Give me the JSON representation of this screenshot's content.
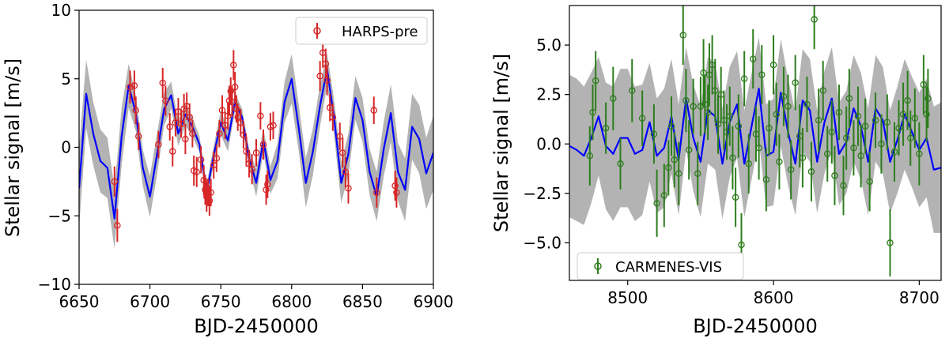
{
  "chart_data": [
    {
      "type": "scatter",
      "id": "left",
      "xlabel": "BJD-2450000",
      "ylabel": "Stellar signal [m/s]",
      "xlim": [
        6650,
        6900
      ],
      "ylim": [
        -10,
        10
      ],
      "xticks": [
        6650,
        6700,
        6750,
        6800,
        6850,
        6900
      ],
      "yticks": [
        -10,
        -5,
        0,
        5,
        10
      ],
      "legend": {
        "label": "HARPS-pre",
        "placement": "top-right"
      },
      "colors": {
        "data": "#d62728",
        "model": "#0000ff",
        "band": "#b3b3b3"
      },
      "model": {
        "x": [
          6650,
          6655,
          6660,
          6665,
          6670,
          6675,
          6680,
          6685,
          6690,
          6695,
          6700,
          6705,
          6710,
          6715,
          6720,
          6725,
          6730,
          6735,
          6740,
          6745,
          6750,
          6755,
          6760,
          6765,
          6770,
          6775,
          6780,
          6785,
          6790,
          6795,
          6800,
          6805,
          6810,
          6815,
          6820,
          6825,
          6830,
          6835,
          6840,
          6845,
          6850,
          6855,
          6860,
          6865,
          6870,
          6875,
          6880,
          6885,
          6890,
          6895,
          6900
        ],
        "y": [
          -3.0,
          3.9,
          1.0,
          -1.0,
          -1.5,
          -5.2,
          0.8,
          4.5,
          2.5,
          -1.5,
          -3.6,
          -0.5,
          2.8,
          3.8,
          1.0,
          2.4,
          1.5,
          0.2,
          -3.3,
          -0.6,
          1.8,
          0.5,
          3.3,
          2.2,
          -0.8,
          -2.6,
          0.5,
          -2.4,
          -1.0,
          3.3,
          5.0,
          1.4,
          -2.6,
          -0.3,
          3.0,
          5.7,
          2.1,
          -2.6,
          -0.5,
          3.6,
          2.0,
          -1.8,
          -3.6,
          -0.1,
          2.5,
          -1.8,
          -3.1,
          1.5,
          0.6,
          -1.9,
          -0.4
        ],
        "band": [
          2.9,
          2.5,
          2.3,
          2.3,
          2.2,
          2.2,
          2.1,
          1.6,
          1.3,
          1.3,
          1.5,
          1.5,
          1.2,
          1.0,
          0.9,
          0.8,
          0.7,
          0.6,
          0.6,
          0.7,
          0.9,
          0.8,
          0.7,
          0.6,
          0.7,
          1.0,
          0.9,
          1.0,
          1.3,
          1.5,
          1.8,
          1.7,
          1.8,
          1.7,
          1.5,
          1.2,
          1.3,
          1.5,
          1.5,
          1.6,
          1.6,
          1.7,
          1.8,
          2.0,
          2.1,
          2.1,
          2.3,
          2.4,
          2.5,
          2.6,
          2.7
        ]
      },
      "points": [
        {
          "x": 6675,
          "y": -2.5,
          "e": 1.1
        },
        {
          "x": 6677,
          "y": -5.7,
          "e": 1.2
        },
        {
          "x": 6686,
          "y": 4.4,
          "e": 1.2
        },
        {
          "x": 6689,
          "y": 4.5,
          "e": 1.1
        },
        {
          "x": 6690,
          "y": 2.7,
          "e": 1.0
        },
        {
          "x": 6692,
          "y": 0.8,
          "e": 1.0
        },
        {
          "x": 6706,
          "y": 0.2,
          "e": 1.0
        },
        {
          "x": 6709,
          "y": 4.7,
          "e": 1.1
        },
        {
          "x": 6711,
          "y": 3.4,
          "e": 1.1
        },
        {
          "x": 6714,
          "y": 1.5,
          "e": 1.0
        },
        {
          "x": 6716,
          "y": -0.3,
          "e": 1.1
        },
        {
          "x": 6718,
          "y": 1.8,
          "e": 1.0
        },
        {
          "x": 6720,
          "y": 2.6,
          "e": 1.0
        },
        {
          "x": 6722,
          "y": 1.7,
          "e": 1.0
        },
        {
          "x": 6724,
          "y": 2.8,
          "e": 1.1
        },
        {
          "x": 6725,
          "y": 0.6,
          "e": 1.1
        },
        {
          "x": 6726,
          "y": 3.0,
          "e": 1.0
        },
        {
          "x": 6728,
          "y": 2.2,
          "e": 1.0
        },
        {
          "x": 6730,
          "y": 1.0,
          "e": 1.0
        },
        {
          "x": 6731,
          "y": -1.7,
          "e": 1.1
        },
        {
          "x": 6733,
          "y": -1.8,
          "e": 1.1
        },
        {
          "x": 6736,
          "y": -0.9,
          "e": 1.0
        },
        {
          "x": 6738,
          "y": -2.4,
          "e": 1.1
        },
        {
          "x": 6739,
          "y": -3.1,
          "e": 1.1
        },
        {
          "x": 6740,
          "y": -3.6,
          "e": 1.1
        },
        {
          "x": 6741,
          "y": -3.3,
          "e": 1.0
        },
        {
          "x": 6742,
          "y": -3.9,
          "e": 1.1
        },
        {
          "x": 6743,
          "y": -3.3,
          "e": 1.0
        },
        {
          "x": 6745,
          "y": -1.3,
          "e": 1.0
        },
        {
          "x": 6747,
          "y": -0.8,
          "e": 1.0
        },
        {
          "x": 6749,
          "y": 1.0,
          "e": 1.0
        },
        {
          "x": 6751,
          "y": 2.7,
          "e": 1.1
        },
        {
          "x": 6753,
          "y": 1.6,
          "e": 1.0
        },
        {
          "x": 6755,
          "y": 2.3,
          "e": 1.0
        },
        {
          "x": 6756,
          "y": 3.4,
          "e": 1.1
        },
        {
          "x": 6757,
          "y": 4.1,
          "e": 1.0
        },
        {
          "x": 6758,
          "y": 3.3,
          "e": 1.1
        },
        {
          "x": 6759,
          "y": 6.0,
          "e": 1.1
        },
        {
          "x": 6760,
          "y": 4.4,
          "e": 1.1
        },
        {
          "x": 6761,
          "y": 2.8,
          "e": 1.0
        },
        {
          "x": 6762,
          "y": 2.2,
          "e": 1.0
        },
        {
          "x": 6764,
          "y": 1.8,
          "e": 1.0
        },
        {
          "x": 6766,
          "y": 0.9,
          "e": 1.0
        },
        {
          "x": 6768,
          "y": -0.3,
          "e": 1.1
        },
        {
          "x": 6770,
          "y": -1.2,
          "e": 1.0
        },
        {
          "x": 6772,
          "y": -1.6,
          "e": 1.1
        },
        {
          "x": 6775,
          "y": -0.4,
          "e": 1.0
        },
        {
          "x": 6778,
          "y": 2.3,
          "e": 1.0
        },
        {
          "x": 6780,
          "y": 0.2,
          "e": 1.1
        },
        {
          "x": 6782,
          "y": -3.1,
          "e": 1.1
        },
        {
          "x": 6783,
          "y": -2.7,
          "e": 1.0
        },
        {
          "x": 6785,
          "y": 1.5,
          "e": 1.0
        },
        {
          "x": 6787,
          "y": 1.6,
          "e": 1.0
        },
        {
          "x": 6820,
          "y": 5.2,
          "e": 1.1
        },
        {
          "x": 6822,
          "y": 6.9,
          "e": 1.1
        },
        {
          "x": 6824,
          "y": 6.1,
          "e": 1.1
        },
        {
          "x": 6825,
          "y": 4.9,
          "e": 1.1
        },
        {
          "x": 6827,
          "y": 2.9,
          "e": 1.0
        },
        {
          "x": 6829,
          "y": 2.2,
          "e": 1.0
        },
        {
          "x": 6834,
          "y": 0.8,
          "e": 1.0
        },
        {
          "x": 6836,
          "y": -0.4,
          "e": 1.1
        },
        {
          "x": 6838,
          "y": -1.8,
          "e": 1.1
        },
        {
          "x": 6840,
          "y": -3.0,
          "e": 1.1
        },
        {
          "x": 6858,
          "y": 2.7,
          "e": 1.0
        },
        {
          "x": 6860,
          "y": -3.3,
          "e": 1.1
        },
        {
          "x": 6873,
          "y": -2.8,
          "e": 1.1
        },
        {
          "x": 6874,
          "y": -3.3,
          "e": 1.1
        }
      ]
    },
    {
      "type": "scatter",
      "id": "right",
      "xlabel": "BJD-2450000",
      "ylabel": "Stellar signal [m/s]",
      "xlim": [
        8460,
        8715
      ],
      "ylim": [
        -6.9,
        7.0
      ],
      "xticks": [
        8500,
        8600,
        8700
      ],
      "yticks": [
        -5.0,
        -2.5,
        0.0,
        2.5,
        5.0
      ],
      "ytick_labels": [
        "−5.0",
        "−2.5",
        "0.0",
        "2.5",
        "5.0"
      ],
      "legend": {
        "label": "CARMENES-VIS",
        "placement": "bottom-left"
      },
      "colors": {
        "data": "#2e7d1e",
        "model": "#0000ff",
        "band": "#b3b3b3"
      },
      "model": {
        "x": [
          8460,
          8465,
          8470,
          8475,
          8480,
          8485,
          8490,
          8495,
          8500,
          8505,
          8510,
          8515,
          8520,
          8525,
          8530,
          8535,
          8540,
          8545,
          8550,
          8555,
          8560,
          8565,
          8570,
          8575,
          8580,
          8585,
          8590,
          8595,
          8600,
          8605,
          8610,
          8615,
          8620,
          8625,
          8630,
          8635,
          8640,
          8645,
          8650,
          8655,
          8660,
          8665,
          8670,
          8675,
          8680,
          8685,
          8690,
          8695,
          8700,
          8705,
          8710,
          8715
        ],
        "y": [
          -0.1,
          -0.3,
          -0.6,
          0.3,
          1.4,
          -0.1,
          -0.5,
          0.3,
          0.3,
          -0.5,
          -0.3,
          1.1,
          -0.6,
          -0.2,
          1.4,
          -0.8,
          2.3,
          0.3,
          -0.9,
          1.7,
          1.4,
          -1.0,
          1.1,
          2.0,
          -1.0,
          0.9,
          2.8,
          -0.6,
          -0.4,
          2.6,
          0.6,
          -1.0,
          2.2,
          1.7,
          -0.9,
          1.1,
          2.3,
          -0.5,
          0.1,
          1.8,
          0.9,
          -0.9,
          1.8,
          1.2,
          -0.9,
          0.2,
          1.5,
          0.6,
          -0.3,
          0.3,
          -1.3,
          -1.2
        ],
        "band": [
          3.6,
          3.6,
          3.5,
          3.3,
          3.0,
          3.2,
          3.4,
          3.5,
          3.5,
          3.4,
          3.3,
          3.0,
          2.9,
          3.0,
          2.9,
          2.8,
          2.6,
          2.7,
          2.8,
          2.7,
          2.7,
          2.8,
          2.8,
          2.7,
          2.7,
          2.7,
          2.6,
          2.6,
          2.7,
          2.7,
          2.7,
          2.6,
          2.6,
          2.6,
          2.6,
          2.6,
          2.6,
          2.6,
          2.6,
          2.7,
          2.7,
          2.7,
          2.7,
          2.7,
          2.6,
          2.7,
          2.8,
          2.8,
          2.9,
          3.0,
          3.2,
          3.3
        ]
      },
      "points": [
        {
          "x": 8474,
          "y": -0.6,
          "e": 1.5
        },
        {
          "x": 8476,
          "y": 1.6,
          "e": 1.4
        },
        {
          "x": 8478,
          "y": 3.2,
          "e": 1.5
        },
        {
          "x": 8485,
          "y": 0.8,
          "e": 1.3
        },
        {
          "x": 8490,
          "y": 2.3,
          "e": 1.6
        },
        {
          "x": 8495,
          "y": -1.0,
          "e": 1.3
        },
        {
          "x": 8503,
          "y": 2.7,
          "e": 1.6
        },
        {
          "x": 8510,
          "y": 1.3,
          "e": 1.4
        },
        {
          "x": 8518,
          "y": 0.5,
          "e": 1.5
        },
        {
          "x": 8520,
          "y": -3.0,
          "e": 1.7
        },
        {
          "x": 8525,
          "y": -2.6,
          "e": 1.6
        },
        {
          "x": 8528,
          "y": -1.2,
          "e": 1.4
        },
        {
          "x": 8530,
          "y": 0.9,
          "e": 1.5
        },
        {
          "x": 8532,
          "y": -0.8,
          "e": 1.4
        },
        {
          "x": 8535,
          "y": -1.5,
          "e": 1.6
        },
        {
          "x": 8538,
          "y": 5.5,
          "e": 1.5
        },
        {
          "x": 8540,
          "y": 2.2,
          "e": 1.6
        },
        {
          "x": 8542,
          "y": -0.3,
          "e": 1.5
        },
        {
          "x": 8545,
          "y": 1.9,
          "e": 1.4
        },
        {
          "x": 8548,
          "y": -1.5,
          "e": 1.6
        },
        {
          "x": 8550,
          "y": 1.9,
          "e": 1.5
        },
        {
          "x": 8552,
          "y": 3.6,
          "e": 1.7
        },
        {
          "x": 8553,
          "y": 2.0,
          "e": 1.5
        },
        {
          "x": 8555,
          "y": 1.6,
          "e": 1.4
        },
        {
          "x": 8556,
          "y": 3.5,
          "e": 1.6
        },
        {
          "x": 8558,
          "y": 4.0,
          "e": 1.5
        },
        {
          "x": 8560,
          "y": 2.7,
          "e": 1.6
        },
        {
          "x": 8562,
          "y": 1.0,
          "e": 1.5
        },
        {
          "x": 8564,
          "y": 2.5,
          "e": 1.4
        },
        {
          "x": 8566,
          "y": 1.2,
          "e": 1.5
        },
        {
          "x": 8568,
          "y": 0.6,
          "e": 1.4
        },
        {
          "x": 8570,
          "y": 1.4,
          "e": 1.5
        },
        {
          "x": 8572,
          "y": -0.7,
          "e": 1.6
        },
        {
          "x": 8574,
          "y": -2.7,
          "e": 1.5
        },
        {
          "x": 8576,
          "y": 0.9,
          "e": 1.6
        },
        {
          "x": 8578,
          "y": -5.1,
          "e": 1.6
        },
        {
          "x": 8580,
          "y": 3.3,
          "e": 1.4
        },
        {
          "x": 8583,
          "y": -1.0,
          "e": 1.5
        },
        {
          "x": 8586,
          "y": 4.3,
          "e": 1.5
        },
        {
          "x": 8588,
          "y": 0.5,
          "e": 1.4
        },
        {
          "x": 8590,
          "y": -0.2,
          "e": 1.6
        },
        {
          "x": 8592,
          "y": 3.5,
          "e": 1.5
        },
        {
          "x": 8595,
          "y": -1.8,
          "e": 1.6
        },
        {
          "x": 8597,
          "y": 0.8,
          "e": 1.4
        },
        {
          "x": 8600,
          "y": 4.0,
          "e": 1.5
        },
        {
          "x": 8602,
          "y": 1.5,
          "e": 1.6
        },
        {
          "x": 8604,
          "y": -0.9,
          "e": 1.4
        },
        {
          "x": 8607,
          "y": 2.4,
          "e": 1.5
        },
        {
          "x": 8610,
          "y": 1.9,
          "e": 1.6
        },
        {
          "x": 8612,
          "y": -1.3,
          "e": 1.5
        },
        {
          "x": 8615,
          "y": 3.1,
          "e": 1.4
        },
        {
          "x": 8618,
          "y": 0.4,
          "e": 1.6
        },
        {
          "x": 8620,
          "y": -0.7,
          "e": 1.5
        },
        {
          "x": 8623,
          "y": 2.0,
          "e": 1.4
        },
        {
          "x": 8626,
          "y": -1.4,
          "e": 1.5
        },
        {
          "x": 8628,
          "y": 6.3,
          "e": 1.5
        },
        {
          "x": 8631,
          "y": 1.2,
          "e": 1.6
        },
        {
          "x": 8634,
          "y": 2.7,
          "e": 1.5
        },
        {
          "x": 8637,
          "y": -0.5,
          "e": 1.4
        },
        {
          "x": 8640,
          "y": 0.6,
          "e": 1.6
        },
        {
          "x": 8642,
          "y": -1.6,
          "e": 1.5
        },
        {
          "x": 8645,
          "y": 1.6,
          "e": 1.4
        },
        {
          "x": 8648,
          "y": -2.1,
          "e": 1.5
        },
        {
          "x": 8650,
          "y": 0.3,
          "e": 1.6
        },
        {
          "x": 8652,
          "y": 2.3,
          "e": 1.5
        },
        {
          "x": 8655,
          "y": -0.2,
          "e": 1.4
        },
        {
          "x": 8658,
          "y": 1.4,
          "e": 1.5
        },
        {
          "x": 8660,
          "y": -0.6,
          "e": 1.6
        },
        {
          "x": 8663,
          "y": 0.9,
          "e": 1.4
        },
        {
          "x": 8666,
          "y": -1.9,
          "e": 1.5
        },
        {
          "x": 8670,
          "y": 1.2,
          "e": 1.4
        },
        {
          "x": 8674,
          "y": 0.0,
          "e": 1.5
        },
        {
          "x": 8678,
          "y": 1.1,
          "e": 1.4
        },
        {
          "x": 8680,
          "y": -5.0,
          "e": 1.7
        },
        {
          "x": 8683,
          "y": -0.4,
          "e": 1.5
        },
        {
          "x": 8686,
          "y": 0.8,
          "e": 1.4
        },
        {
          "x": 8689,
          "y": 1.5,
          "e": 1.6
        },
        {
          "x": 8692,
          "y": 2.2,
          "e": 1.5
        },
        {
          "x": 8694,
          "y": 0.3,
          "e": 1.4
        },
        {
          "x": 8697,
          "y": 1.3,
          "e": 1.5
        },
        {
          "x": 8700,
          "y": -0.5,
          "e": 1.6
        },
        {
          "x": 8703,
          "y": 3.0,
          "e": 1.5
        },
        {
          "x": 8705,
          "y": 1.5,
          "e": 1.4
        },
        {
          "x": 8706,
          "y": 2.3,
          "e": 1.5
        }
      ]
    }
  ]
}
